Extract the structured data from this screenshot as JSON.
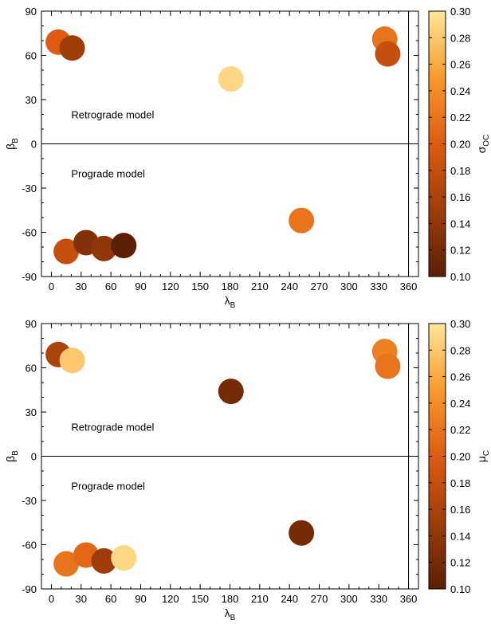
{
  "chart_data": [
    {
      "type": "scatter",
      "title": "",
      "xlabel": "λ",
      "xlabel_sub": "B",
      "ylabel": "β",
      "ylabel_sub": "B",
      "xlim": [
        -10,
        370
      ],
      "ylim": [
        -90,
        90
      ],
      "xticks": [
        0,
        30,
        60,
        90,
        120,
        150,
        180,
        210,
        240,
        270,
        300,
        330,
        360
      ],
      "yticks": [
        -90,
        -60,
        -30,
        0,
        30,
        60,
        90
      ],
      "vline": 360,
      "hline": 0,
      "annotations": [
        {
          "text": "Retrograde model",
          "x": 20,
          "y": 20
        },
        {
          "text": "Prograde model",
          "x": 20,
          "y": -20
        }
      ],
      "colorbar": {
        "label": "σ",
        "label_sub": "OC",
        "min": 0.1,
        "max": 0.3,
        "ticks": [
          "0.30",
          "0.28",
          "0.26",
          "0.24",
          "0.22",
          "0.20",
          "0.18",
          "0.16",
          "0.14",
          "0.12",
          "0.10"
        ]
      },
      "points": [
        {
          "x": 7,
          "y": 69,
          "c": 0.2
        },
        {
          "x": 21,
          "y": 65,
          "c": 0.15
        },
        {
          "x": 181,
          "y": 44,
          "c": 0.29
        },
        {
          "x": 336,
          "y": 71,
          "c": 0.22
        },
        {
          "x": 339,
          "y": 61,
          "c": 0.18
        },
        {
          "x": 252,
          "y": -52,
          "c": 0.22
        },
        {
          "x": 15,
          "y": -73,
          "c": 0.18
        },
        {
          "x": 35,
          "y": -67,
          "c": 0.13
        },
        {
          "x": 53,
          "y": -71,
          "c": 0.14
        },
        {
          "x": 73,
          "y": -69,
          "c": 0.1
        }
      ]
    },
    {
      "type": "scatter",
      "title": "",
      "xlabel": "λ",
      "xlabel_sub": "B",
      "ylabel": "β",
      "ylabel_sub": "B",
      "xlim": [
        -10,
        370
      ],
      "ylim": [
        -90,
        90
      ],
      "xticks": [
        0,
        30,
        60,
        90,
        120,
        150,
        180,
        210,
        240,
        270,
        300,
        330,
        360
      ],
      "yticks": [
        -90,
        -60,
        -30,
        0,
        30,
        60,
        90
      ],
      "vline": 360,
      "hline": 0,
      "annotations": [
        {
          "text": "Retrograde model",
          "x": 20,
          "y": 20
        },
        {
          "text": "Prograde model",
          "x": 20,
          "y": -20
        }
      ],
      "colorbar": {
        "label": "μ",
        "label_sub": "C",
        "min": 0.1,
        "max": 0.3,
        "ticks": [
          "0.30",
          "0.28",
          "0.26",
          "0.24",
          "0.22",
          "0.20",
          "0.18",
          "0.16",
          "0.14",
          "0.12",
          "0.10"
        ]
      },
      "points": [
        {
          "x": 7,
          "y": 69,
          "c": 0.16
        },
        {
          "x": 21,
          "y": 65,
          "c": 0.28
        },
        {
          "x": 181,
          "y": 44,
          "c": 0.12
        },
        {
          "x": 336,
          "y": 71,
          "c": 0.23
        },
        {
          "x": 339,
          "y": 61,
          "c": 0.22
        },
        {
          "x": 252,
          "y": -52,
          "c": 0.12
        },
        {
          "x": 15,
          "y": -73,
          "c": 0.22
        },
        {
          "x": 35,
          "y": -67,
          "c": 0.21
        },
        {
          "x": 53,
          "y": -71,
          "c": 0.15
        },
        {
          "x": 73,
          "y": -69,
          "c": 0.29
        }
      ]
    }
  ]
}
